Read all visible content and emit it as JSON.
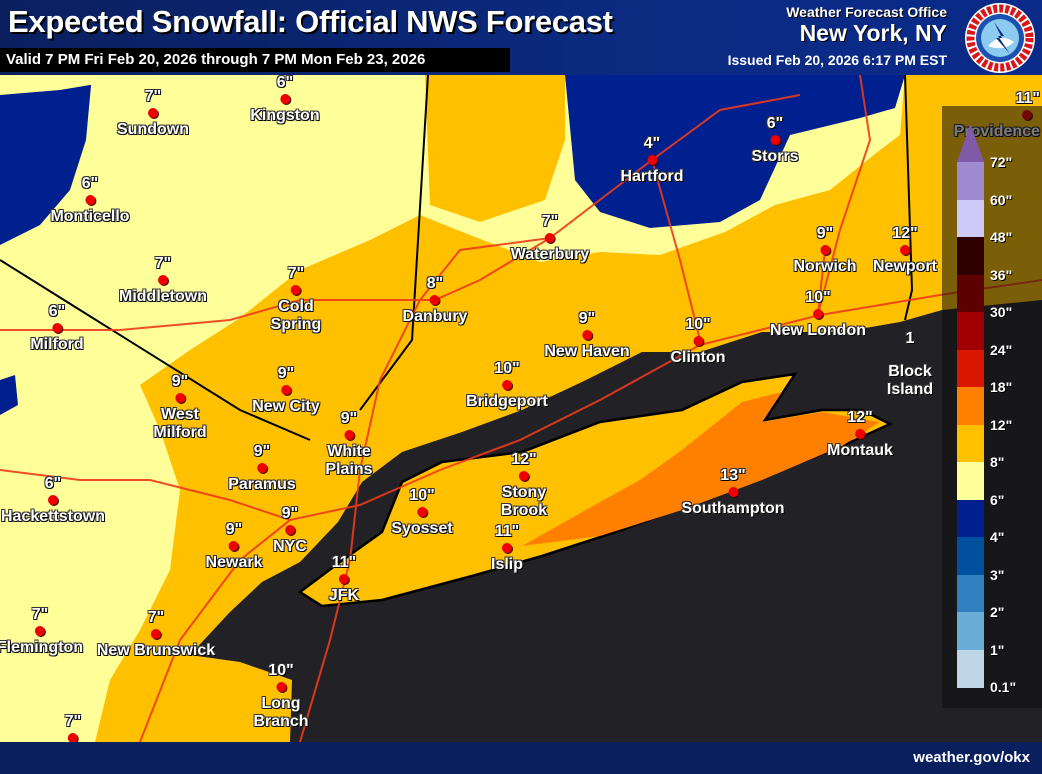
{
  "header": {
    "title": "Expected Snowfall: Official NWS Forecast",
    "valid": "Valid 7 PM Fri Feb 20, 2026 through 7 PM Mon Feb 23, 2026",
    "office_label": "Weather Forecast Office",
    "office_city": "New York, NY",
    "issued": "Issued Feb 20, 2026 6:17 PM EST",
    "logo_text": "NATIONAL WEATHER SERVICE"
  },
  "cities": [
    {
      "name": [
        "Sundown"
      ],
      "value": "7\""
    },
    {
      "name": [
        "Kingston"
      ],
      "value": "6\""
    },
    {
      "name": [
        "Monticello"
      ],
      "value": "6\""
    },
    {
      "name": [
        "Middletown"
      ],
      "value": "7\""
    },
    {
      "name": [
        "Milford"
      ],
      "value": "6\""
    },
    {
      "name": [
        "Cold",
        "Spring"
      ],
      "value": "7\""
    },
    {
      "name": [
        "Danbury"
      ],
      "value": "8\""
    },
    {
      "name": [
        "Waterbury"
      ],
      "value": "7\""
    },
    {
      "name": [
        "Hartford"
      ],
      "value": "4\""
    },
    {
      "name": [
        "Storrs"
      ],
      "value": "6\""
    },
    {
      "name": [
        "Norwich"
      ],
      "value": "9\""
    },
    {
      "name": [
        "New London"
      ],
      "value": "10\""
    },
    {
      "name": [
        "Clinton"
      ],
      "value": "10\""
    },
    {
      "name": [
        "New Haven"
      ],
      "value": "9\""
    },
    {
      "name": [
        "Bridgeport"
      ],
      "value": "10\""
    },
    {
      "name": [
        "West",
        "Milford"
      ],
      "value": "9\""
    },
    {
      "name": [
        "New City"
      ],
      "value": "9\""
    },
    {
      "name": [
        "White",
        "Plains"
      ],
      "value": "9\""
    },
    {
      "name": [
        "Paramus"
      ],
      "value": "9\""
    },
    {
      "name": [
        "Hackettstown"
      ],
      "value": "6\""
    },
    {
      "name": [
        "Stony",
        "Brook"
      ],
      "value": "12\""
    },
    {
      "name": [
        "Syosset"
      ],
      "value": "10\""
    },
    {
      "name": [
        "Montauk"
      ],
      "value": "12\""
    },
    {
      "name": [
        "Southampton"
      ],
      "value": "13\""
    },
    {
      "name": [
        "Islip"
      ],
      "value": "11\""
    },
    {
      "name": [
        "NYC"
      ],
      "value": "9\""
    },
    {
      "name": [
        "Newark"
      ],
      "value": "9\""
    },
    {
      "name": [
        "JFK"
      ],
      "value": "11\""
    },
    {
      "name": [
        "Flemington"
      ],
      "value": "7\""
    },
    {
      "name": [
        "New Brunswick"
      ],
      "value": "7\""
    },
    {
      "name": [
        "Long",
        "Branch"
      ],
      "value": "10\""
    },
    {
      "name": [
        "Providence"
      ],
      "value": "11\""
    },
    {
      "name": [
        "Newport"
      ],
      "value": "12\""
    },
    {
      "name": [
        "Block",
        "Island"
      ],
      "value": "1"
    },
    {
      "name": [
        ""
      ],
      "value": "7\""
    }
  ],
  "legend": {
    "labels": [
      "72\"",
      "60\"",
      "48\"",
      "36\"",
      "30\"",
      "24\"",
      "18\"",
      "12\"",
      "8\"",
      "6\"",
      "4\"",
      "3\"",
      "2\"",
      "1\"",
      "0.1\""
    ],
    "colors": [
      "#a08bd0",
      "#cdcaf7",
      "#2e0000",
      "#5c0000",
      "#a00000",
      "#d91600",
      "#ff8000",
      "#ffc000",
      "#ffff99",
      "#00208f",
      "#0050a0",
      "#3080c0",
      "#6aaed8",
      "#bed6e6"
    ],
    "arrow_color": "#7e5aa8"
  },
  "map_colors": {
    "ocean": "#222126",
    "snow_4_6": "#00208f",
    "snow_6_8": "#ffff99",
    "snow_8_12": "#ffc000",
    "snow_12_18": "#ff8000",
    "city_dot": "#e00000"
  },
  "footer": {
    "url": "weather.gov/okx"
  }
}
